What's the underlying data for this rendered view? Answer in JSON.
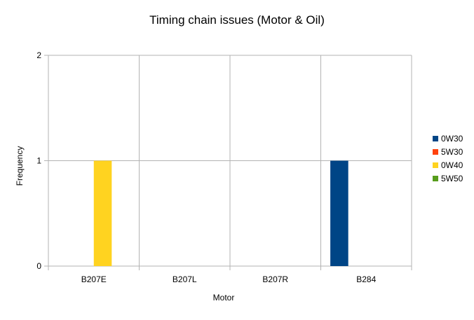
{
  "chart_data": {
    "type": "bar",
    "title": "Timing chain issues (Motor & Oil)",
    "xlabel": "Motor",
    "ylabel": "Frequency",
    "categories": [
      "B207E",
      "B207L",
      "B207R",
      "B284"
    ],
    "series": [
      {
        "name": "0W30",
        "color": "#004586",
        "values": [
          0,
          0,
          0,
          1
        ]
      },
      {
        "name": "5W30",
        "color": "#ff420e",
        "values": [
          0,
          0,
          0,
          0
        ]
      },
      {
        "name": "0W40",
        "color": "#ffd320",
        "values": [
          1,
          0,
          0,
          0
        ]
      },
      {
        "name": "5W50",
        "color": "#579d1c",
        "values": [
          0,
          0,
          0,
          0
        ]
      }
    ],
    "ylim": [
      0,
      2
    ],
    "yticks": [
      0,
      1,
      2
    ],
    "grid": true,
    "legend_position": "right"
  }
}
